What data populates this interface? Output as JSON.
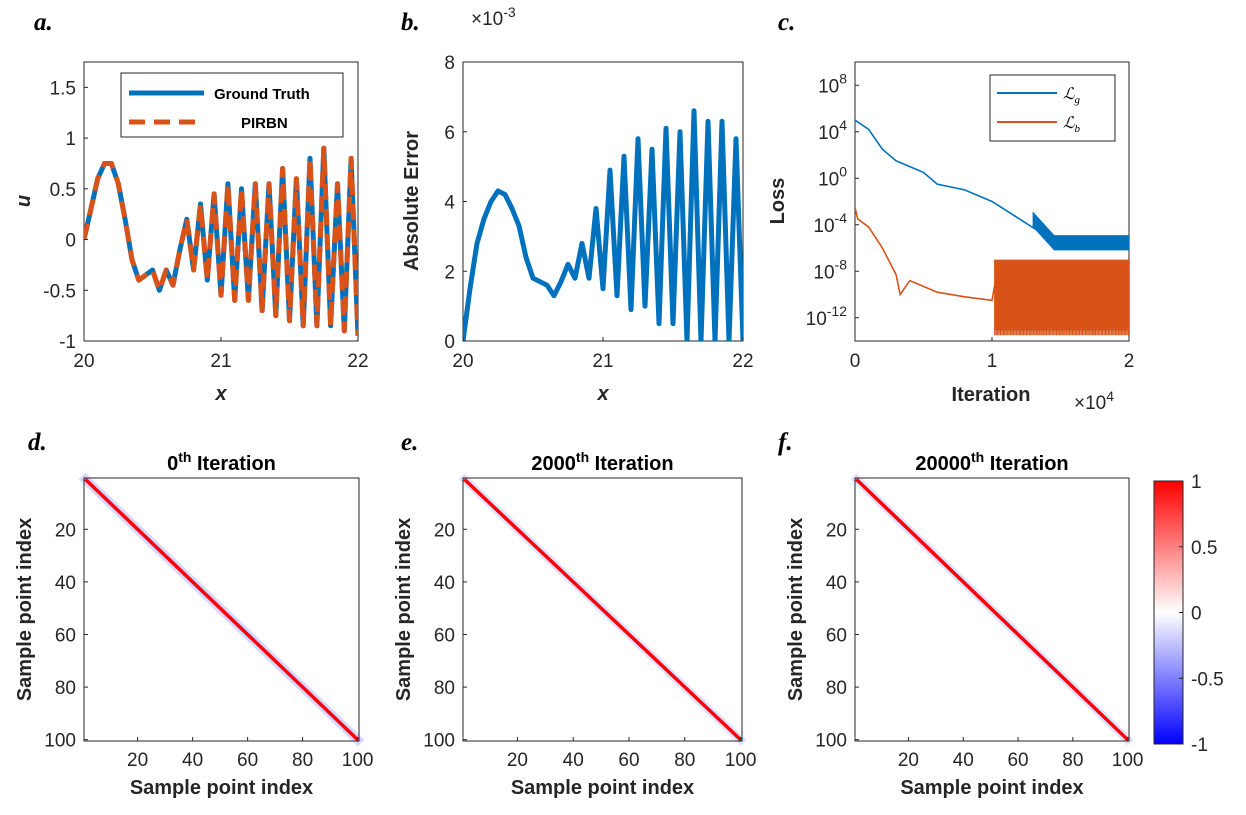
{
  "panel_labels": [
    "a.",
    "b.",
    "c.",
    "d.",
    "e.",
    "f."
  ],
  "colors": {
    "ground_truth": "#0072BD",
    "pirbn": "#D95319",
    "loss_g": "#0072BD",
    "loss_b": "#D95319",
    "axis": "#262626",
    "diag_pos": "#ff0000",
    "neg": "#0000ff"
  },
  "chart_data": [
    {
      "type": "line",
      "panel": "a.",
      "xlabel": "x",
      "ylabel": "u",
      "xlim": [
        20,
        22
      ],
      "ylim": [
        -1,
        1.75
      ],
      "xticks": [
        "20",
        "21",
        "22"
      ],
      "yticks": [
        "-1",
        "-0.5",
        "0",
        "0.5",
        "1",
        "1.5"
      ],
      "legend_position": "top-right",
      "series": [
        {
          "name": "Ground Truth",
          "style": "solid",
          "color": "#0072BD",
          "x": [
            20.0,
            20.05,
            20.1,
            20.15,
            20.2,
            20.25,
            20.3,
            20.35,
            20.4,
            20.45,
            20.5,
            20.55,
            20.6,
            20.65,
            20.7,
            20.75,
            20.8,
            20.85,
            20.9,
            20.95,
            21.0,
            21.05,
            21.1,
            21.15,
            21.2,
            21.25,
            21.3,
            21.35,
            21.4,
            21.45,
            21.5,
            21.55,
            21.6,
            21.65,
            21.7,
            21.75,
            21.8,
            21.85,
            21.9,
            21.95,
            22.0
          ],
          "y": [
            0.0,
            0.3,
            0.6,
            0.75,
            0.75,
            0.55,
            0.2,
            -0.2,
            -0.4,
            -0.35,
            -0.3,
            -0.5,
            -0.3,
            -0.45,
            -0.1,
            0.2,
            -0.3,
            0.35,
            -0.4,
            0.45,
            -0.55,
            0.55,
            -0.6,
            0.5,
            -0.6,
            0.55,
            -0.7,
            0.55,
            -0.75,
            0.7,
            -0.8,
            0.6,
            -0.85,
            0.8,
            -0.85,
            0.9,
            -0.85,
            0.55,
            -0.9,
            0.8,
            -0.95
          ]
        },
        {
          "name": "PIRBN",
          "style": "dashed",
          "color": "#D95319",
          "x": [
            20.0,
            20.05,
            20.1,
            20.15,
            20.2,
            20.25,
            20.3,
            20.35,
            20.4,
            20.45,
            20.5,
            20.55,
            20.6,
            20.65,
            20.7,
            20.75,
            20.8,
            20.85,
            20.9,
            20.95,
            21.0,
            21.05,
            21.1,
            21.15,
            21.2,
            21.25,
            21.3,
            21.35,
            21.4,
            21.45,
            21.5,
            21.55,
            21.6,
            21.65,
            21.7,
            21.75,
            21.8,
            21.85,
            21.9,
            21.95,
            22.0
          ],
          "y": [
            0.0,
            0.3,
            0.6,
            0.75,
            0.75,
            0.55,
            0.2,
            -0.2,
            -0.4,
            -0.35,
            -0.3,
            -0.5,
            -0.3,
            -0.45,
            -0.1,
            0.2,
            -0.3,
            0.35,
            -0.4,
            0.45,
            -0.55,
            0.55,
            -0.6,
            0.5,
            -0.6,
            0.55,
            -0.7,
            0.55,
            -0.75,
            0.7,
            -0.8,
            0.6,
            -0.85,
            0.8,
            -0.85,
            0.9,
            -0.85,
            0.55,
            -0.9,
            0.8,
            -0.95
          ]
        }
      ]
    },
    {
      "type": "line",
      "panel": "b.",
      "xlabel": "x",
      "ylabel": "Absolute Error",
      "y_multiplier": "×10",
      "y_multiplier_exp": "-3",
      "xlim": [
        20,
        22
      ],
      "ylim": [
        0,
        8
      ],
      "xticks": [
        "20",
        "21",
        "22"
      ],
      "yticks": [
        "0",
        "2",
        "4",
        "6",
        "8"
      ],
      "series": [
        {
          "name": "",
          "color": "#0072BD",
          "x": [
            20.0,
            20.05,
            20.1,
            20.15,
            20.2,
            20.25,
            20.3,
            20.35,
            20.4,
            20.45,
            20.5,
            20.55,
            20.6,
            20.65,
            20.7,
            20.75,
            20.8,
            20.85,
            20.9,
            20.95,
            21.0,
            21.05,
            21.1,
            21.15,
            21.2,
            21.25,
            21.3,
            21.35,
            21.4,
            21.45,
            21.5,
            21.55,
            21.6,
            21.65,
            21.7,
            21.75,
            21.8,
            21.85,
            21.9,
            21.95,
            22.0
          ],
          "y": [
            0.0,
            1.5,
            2.8,
            3.5,
            4.0,
            4.3,
            4.2,
            3.8,
            3.3,
            2.4,
            1.8,
            1.7,
            1.6,
            1.3,
            1.7,
            2.2,
            1.8,
            2.8,
            1.8,
            3.8,
            1.5,
            4.9,
            1.3,
            5.3,
            0.9,
            5.8,
            1.0,
            5.5,
            0.5,
            6.1,
            0.5,
            6.0,
            0.0,
            6.6,
            0.0,
            6.3,
            0.0,
            6.3,
            0.0,
            5.8,
            0.0
          ]
        }
      ]
    },
    {
      "type": "line",
      "panel": "c.",
      "xlabel": "Iteration",
      "x_multiplier": "×10",
      "x_multiplier_exp": "4",
      "ylabel": "Loss",
      "yscale": "log",
      "xlim": [
        0,
        2
      ],
      "ylim_exp": [
        -14,
        10
      ],
      "xticks": [
        "0",
        "1",
        "2"
      ],
      "ytick_base": "10",
      "ytick_exps": [
        "-12",
        "-8",
        "-4",
        "0",
        "4",
        "8"
      ],
      "legend_position": "top-right",
      "series": [
        {
          "name": "ℒ",
          "name_sub": "g",
          "color": "#0072BD",
          "x": [
            0,
            0.1,
            0.2,
            0.3,
            0.4,
            0.5,
            0.6,
            0.8,
            1.0,
            1.2,
            1.4,
            1.6,
            1.8,
            2.0
          ],
          "log10_y": [
            5,
            4.2,
            2.5,
            1.5,
            1.0,
            0.5,
            -0.5,
            -1.0,
            -2.0,
            -3.5,
            -5,
            -5.5,
            -5.5,
            -5.6
          ]
        },
        {
          "name": "ℒ",
          "name_sub": "b",
          "color": "#D95319",
          "x": [
            0,
            0.02,
            0.1,
            0.2,
            0.3,
            0.33,
            0.4,
            0.6,
            0.8,
            1.0,
            1.05,
            1.3,
            1.6,
            2.0
          ],
          "log10_y": [
            -2.5,
            -3.5,
            -4.2,
            -6.0,
            -8.3,
            -10.0,
            -8.8,
            -9.8,
            -10.2,
            -10.5,
            -7.2,
            -7.3,
            -7.2,
            -7.3
          ],
          "oscillation_from": 1.02,
          "oscillation_range_log10": [
            -13.5,
            -7.0
          ]
        }
      ]
    },
    {
      "type": "heatmap",
      "panel": "d.",
      "title": "0",
      "title_sup": "th",
      "title_suffix": " Iteration",
      "xlabel": "Sample point index",
      "ylabel": "Sample point index",
      "size": 100,
      "xticks": [
        "20",
        "40",
        "60",
        "80",
        "100"
      ],
      "yticks": [
        "20",
        "40",
        "60",
        "80",
        "100"
      ],
      "diagonal_value": 1,
      "band_value": -0.15,
      "band_halfwidth": 2.5
    },
    {
      "type": "heatmap",
      "panel": "e.",
      "title": "2000",
      "title_sup": "th",
      "title_suffix": " Iteration",
      "xlabel": "Sample point index",
      "ylabel": "Sample point index",
      "size": 100,
      "xticks": [
        "20",
        "40",
        "60",
        "80",
        "100"
      ],
      "yticks": [
        "20",
        "40",
        "60",
        "80",
        "100"
      ],
      "diagonal_value": 1,
      "band_value": -0.12,
      "band_halfwidth": 2.2
    },
    {
      "type": "heatmap",
      "panel": "f.",
      "title": "20000",
      "title_sup": "th",
      "title_suffix": " Iteration",
      "xlabel": "Sample point index",
      "ylabel": "Sample point index",
      "size": 100,
      "xticks": [
        "20",
        "40",
        "60",
        "80",
        "100"
      ],
      "yticks": [
        "20",
        "40",
        "60",
        "80",
        "100"
      ],
      "diagonal_value": 1,
      "band_value": -0.12,
      "band_halfwidth": 2.2
    },
    {
      "type": "colorbar",
      "range": [
        -1,
        1
      ],
      "ticks": [
        "1",
        "0.5",
        "0",
        "-0.5",
        "-1"
      ]
    }
  ]
}
